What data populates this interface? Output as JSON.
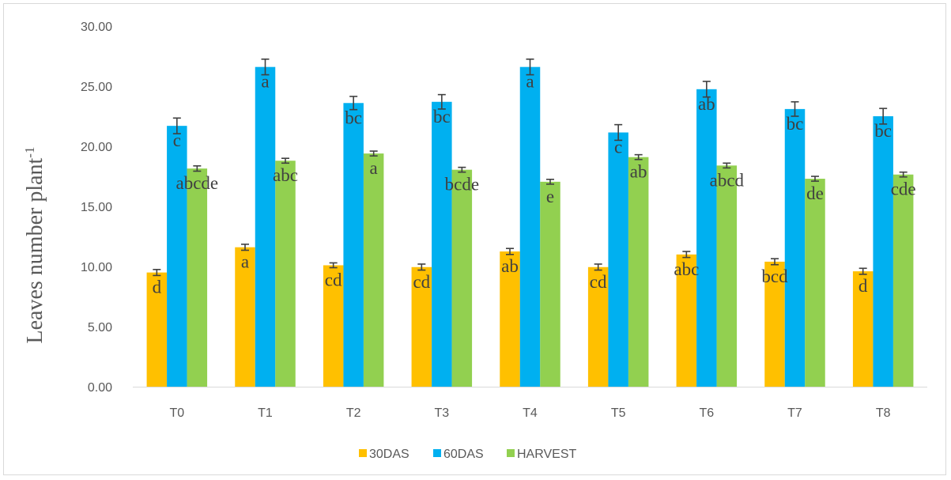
{
  "chart_data": {
    "type": "bar",
    "ylabel": "Leaves number plant",
    "ylabel_sup": "-1",
    "xlabel": "",
    "ylim": [
      0,
      30
    ],
    "yticks": [
      "0.00",
      "5.00",
      "10.00",
      "15.00",
      "20.00",
      "25.00",
      "30.00"
    ],
    "grid": false,
    "legend_position": "bottom",
    "categories": [
      "T0",
      "T1",
      "T2",
      "T3",
      "T4",
      "T5",
      "T6",
      "T7",
      "T8"
    ],
    "series": [
      {
        "name": "30DAS",
        "color": "#ffc000",
        "values": [
          9.5,
          11.6,
          10.1,
          9.95,
          11.25,
          9.95,
          11.0,
          10.4,
          9.6
        ],
        "errors": [
          0.25,
          0.25,
          0.2,
          0.25,
          0.25,
          0.25,
          0.25,
          0.25,
          0.25
        ],
        "letters": [
          "d",
          "a",
          "cd",
          "cd",
          "ab",
          "cd",
          "abc",
          "bcd",
          "d"
        ]
      },
      {
        "name": "60DAS",
        "color": "#00b0f0",
        "values": [
          21.7,
          26.6,
          23.6,
          23.7,
          26.6,
          21.15,
          24.75,
          23.1,
          22.5
        ],
        "errors": [
          0.65,
          0.65,
          0.55,
          0.6,
          0.65,
          0.65,
          0.65,
          0.6,
          0.65
        ],
        "letters": [
          "c",
          "a",
          "bc",
          "bc",
          "a",
          "c",
          "ab",
          "bc",
          "bc"
        ]
      },
      {
        "name": "HARVEST",
        "color": "#92d050",
        "values": [
          18.15,
          18.8,
          19.4,
          18.05,
          17.05,
          19.1,
          18.4,
          17.3,
          17.65
        ],
        "errors": [
          0.22,
          0.2,
          0.2,
          0.2,
          0.2,
          0.2,
          0.2,
          0.2,
          0.2
        ],
        "letters": [
          "abcde",
          "abc",
          "a",
          "bcde",
          "e",
          "ab",
          "abcd",
          "de",
          "cde"
        ]
      }
    ],
    "error_bar_color": "#404040"
  }
}
